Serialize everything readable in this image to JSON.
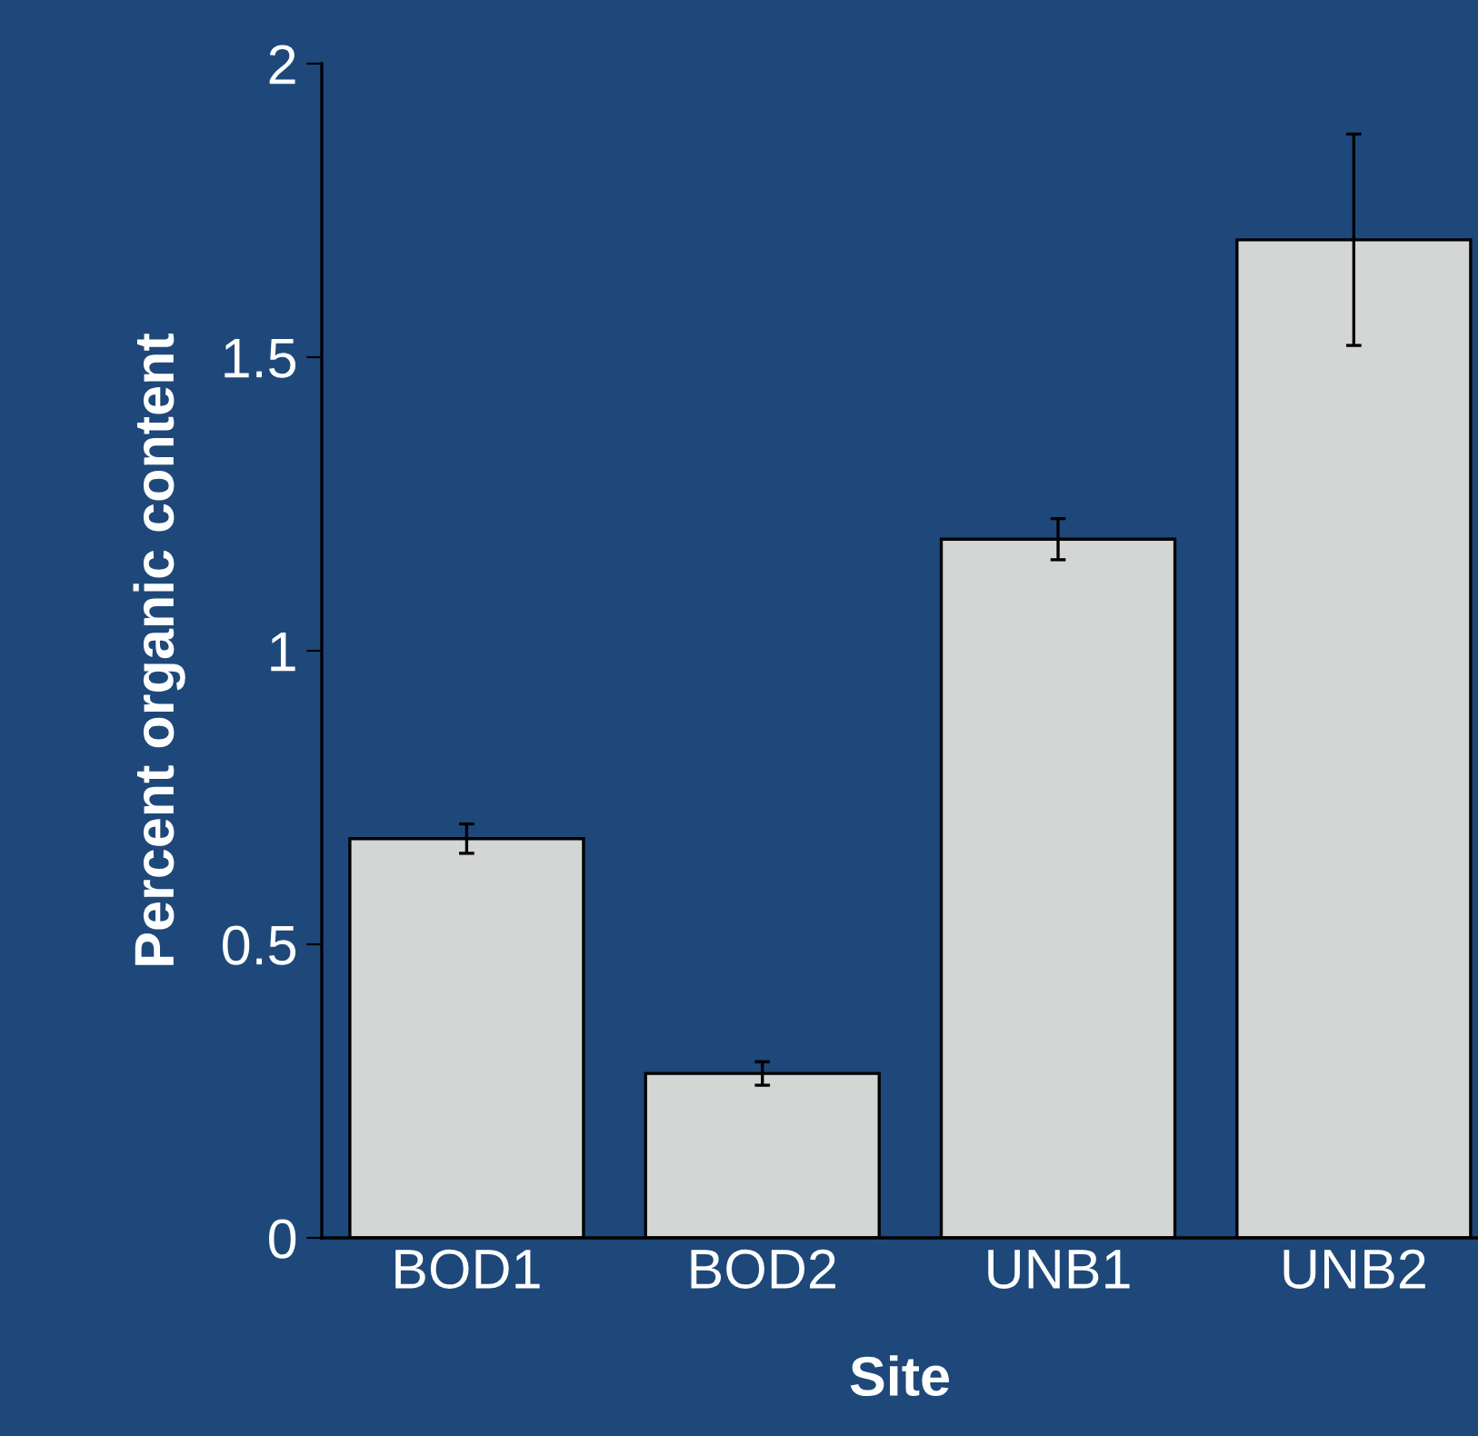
{
  "chart_data": {
    "type": "bar",
    "xlabel": "Site",
    "ylabel": "Percent organic content",
    "categories": [
      "BOD1",
      "BOD2",
      "UNB1",
      "UNB2"
    ],
    "values": [
      0.68,
      0.28,
      1.19,
      1.7
    ],
    "errors": [
      0.025,
      0.02,
      0.035,
      0.18
    ],
    "color": "#d4d5d5",
    "ylim": [
      0,
      2
    ],
    "yticks": [
      0,
      0.5,
      1,
      1.5,
      2
    ],
    "grid": false,
    "legend": false
  }
}
